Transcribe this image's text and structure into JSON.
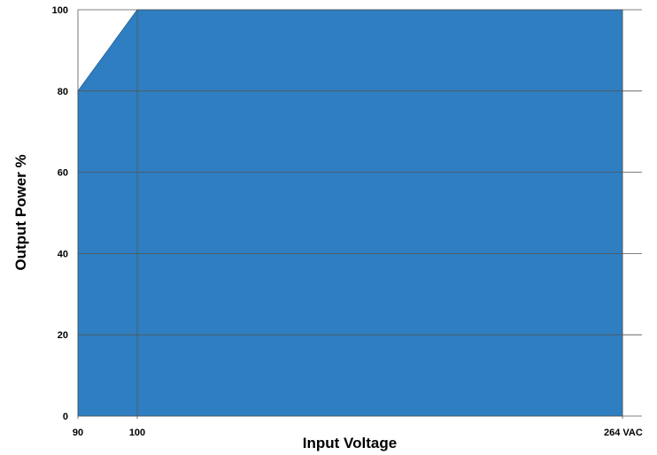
{
  "chart_data": {
    "type": "area",
    "title": "",
    "xlabel": "Input Voltage",
    "ylabel": "Output Power %",
    "x": [
      90,
      100,
      264
    ],
    "y": [
      80,
      100,
      100
    ],
    "xlim": [
      90,
      264
    ],
    "ylim": [
      0,
      100
    ],
    "x_ticks": [
      {
        "value": 90,
        "label": "90"
      },
      {
        "value": 100,
        "label": "100"
      },
      {
        "value": 264,
        "label": "264 VAC"
      }
    ],
    "y_ticks": [
      {
        "value": 0,
        "label": "0"
      },
      {
        "value": 20,
        "label": "20"
      },
      {
        "value": 40,
        "label": "40"
      },
      {
        "value": 60,
        "label": "60"
      },
      {
        "value": 80,
        "label": "80"
      },
      {
        "value": 100,
        "label": "100"
      }
    ],
    "grid": true,
    "fill_color": "#2e7ec1",
    "grid_color": "#555555"
  }
}
